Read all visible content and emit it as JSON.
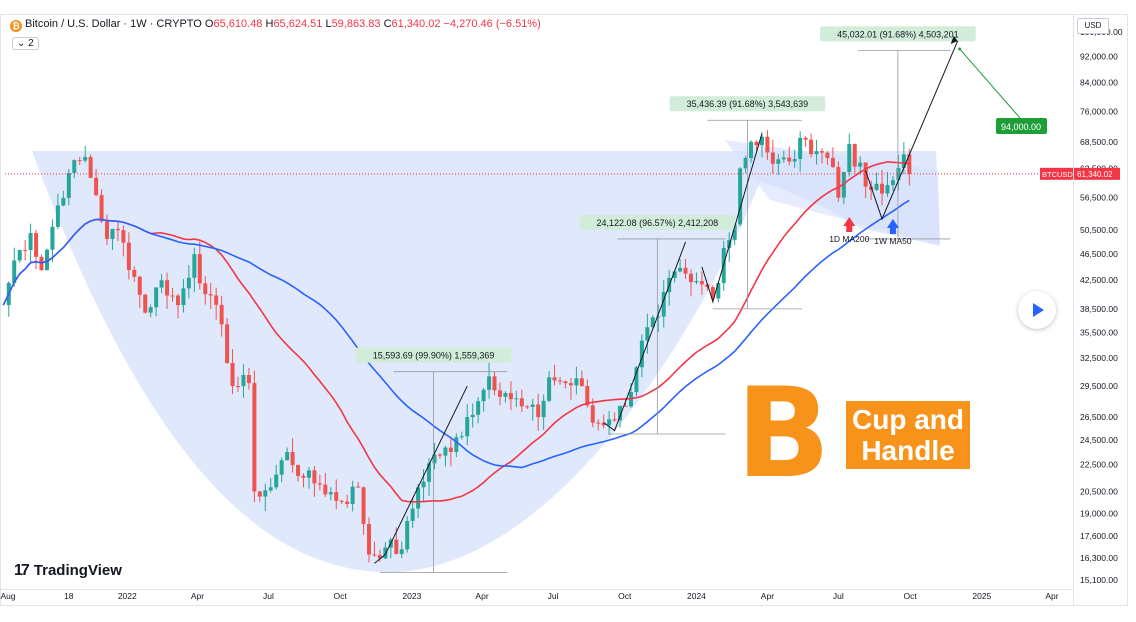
{
  "header": {
    "symbol": "Bitcoin / U.S. Dollar · 1W · CRYPTO",
    "open_label": "O",
    "open": "65,610.48",
    "high_label": "H",
    "high": "65,624.51",
    "low_label": "L",
    "low": "59,863.83",
    "close_label": "C",
    "close": "61,340.02",
    "change": "−4,270.46 (−6.51%)",
    "indicators_count": "2"
  },
  "brand": {
    "name": "TradingView"
  },
  "currency": "USD",
  "price_tag": {
    "symbol": "BTCUSD",
    "value": "61,340.02"
  },
  "annotations": {
    "cup_handle_line1": "Cup and",
    "cup_handle_line2": "Handle",
    "btc_symbol": "B",
    "target_label": "94,000.00",
    "ma200_label": "1D MA200",
    "ma50_label": "1W MA50",
    "measure1": "15,593.69 (99.90%) 1,559,369",
    "measure2": "24,122.08 (96.57%) 2,412,208",
    "measure3": "35,436.39 (91.68%) 3,543,639",
    "measure4": "45,032.01 (91.68%) 4,503,201"
  },
  "colors": {
    "up": "#26a69a",
    "down": "#ef5350",
    "ma_red": "#f23645",
    "ma_blue": "#2962ff",
    "cup_fill": "#d6e0fb",
    "accent": "#f7931a",
    "target": "#1e9e38",
    "label_bg": "#d1ecd8"
  },
  "chart_data": {
    "type": "candlestick",
    "title": "Bitcoin / U.S. Dollar · 1W · CRYPTO",
    "y_scale": "log",
    "ylim": [
      14800,
      105000
    ],
    "y_ticks": [
      "100,000.00",
      "92,000.00",
      "84,000.00",
      "76,000.00",
      "68,500.00",
      "62,500.00",
      "56,500.00",
      "50,500.00",
      "46,500.00",
      "42,500.00",
      "38,500.00",
      "35,500.00",
      "32,500.00",
      "29,500.00",
      "26,500.00",
      "24,500.00",
      "22,500.00",
      "20,500.00",
      "19,000.00",
      "17,600.00",
      "16,300.00",
      "15,100.00"
    ],
    "x_ticks": [
      "Aug",
      "18",
      "2022",
      "Apr",
      "Jul",
      "Oct",
      "2023",
      "Apr",
      "Jul",
      "Oct",
      "2024",
      "Apr",
      "Jul",
      "Oct",
      "2025",
      "Apr"
    ],
    "x_tick_dates": [
      "2021-08-01",
      "2021-10-18",
      "2022-01-01",
      "2022-04-01",
      "2022-07-01",
      "2022-10-01",
      "2023-01-01",
      "2023-04-01",
      "2023-07-01",
      "2023-10-01",
      "2024-01-01",
      "2024-04-01",
      "2024-07-01",
      "2024-10-01",
      "2025-01-01",
      "2025-04-01"
    ],
    "weekly_closes_anchor": [
      [
        "2021-07-26",
        39000
      ],
      [
        "2021-08-09",
        45500
      ],
      [
        "2021-08-30",
        50000
      ],
      [
        "2021-09-13",
        44000
      ],
      [
        "2021-10-04",
        55000
      ],
      [
        "2021-10-18",
        61500
      ],
      [
        "2021-11-08",
        65000
      ],
      [
        "2021-11-22",
        57000
      ],
      [
        "2021-12-06",
        49000
      ],
      [
        "2021-12-20",
        50500
      ],
      [
        "2022-01-10",
        43000
      ],
      [
        "2022-01-24",
        38000
      ],
      [
        "2022-02-14",
        42500
      ],
      [
        "2022-03-07",
        39000
      ],
      [
        "2022-03-28",
        46500
      ],
      [
        "2022-04-11",
        40500
      ],
      [
        "2022-05-02",
        36500
      ],
      [
        "2022-05-16",
        29500
      ],
      [
        "2022-06-06",
        29800
      ],
      [
        "2022-06-13",
        20500
      ],
      [
        "2022-07-04",
        20800
      ],
      [
        "2022-07-25",
        23500
      ],
      [
        "2022-08-15",
        21500
      ],
      [
        "2022-09-05",
        21000
      ],
      [
        "2022-10-03",
        19800
      ],
      [
        "2022-10-24",
        20800
      ],
      [
        "2022-11-07",
        16500
      ],
      [
        "2022-11-28",
        16900
      ],
      [
        "2022-12-19",
        16800
      ],
      [
        "2023-01-09",
        20800
      ],
      [
        "2023-01-30",
        23300
      ],
      [
        "2023-02-20",
        23500
      ],
      [
        "2023-03-13",
        26500
      ],
      [
        "2023-03-27",
        28000
      ],
      [
        "2023-04-10",
        30500
      ],
      [
        "2023-05-01",
        28800
      ],
      [
        "2023-05-22",
        27500
      ],
      [
        "2023-06-12",
        26500
      ],
      [
        "2023-06-26",
        30400
      ],
      [
        "2023-07-17",
        29800
      ],
      [
        "2023-08-07",
        29500
      ],
      [
        "2023-08-21",
        26000
      ],
      [
        "2023-09-11",
        26300
      ],
      [
        "2023-10-02",
        27500
      ],
      [
        "2023-10-23",
        34500
      ],
      [
        "2023-11-13",
        37500
      ],
      [
        "2023-12-04",
        43800
      ],
      [
        "2023-12-25",
        42200
      ],
      [
        "2024-01-15",
        41500
      ],
      [
        "2024-01-22",
        39900
      ],
      [
        "2024-02-05",
        47500
      ],
      [
        "2024-02-19",
        51500
      ],
      [
        "2024-02-26",
        62500
      ],
      [
        "2024-03-11",
        68500
      ],
      [
        "2024-03-25",
        69700
      ],
      [
        "2024-04-08",
        63500
      ],
      [
        "2024-04-29",
        64000
      ],
      [
        "2024-05-20",
        69000
      ],
      [
        "2024-06-10",
        66000
      ],
      [
        "2024-06-24",
        62800
      ],
      [
        "2024-07-01",
        56500
      ],
      [
        "2024-07-15",
        68000
      ],
      [
        "2024-08-05",
        58700
      ],
      [
        "2024-08-26",
        57300
      ],
      [
        "2024-09-09",
        60000
      ],
      [
        "2024-09-23",
        65600
      ],
      [
        "2024-09-30",
        61340
      ]
    ],
    "ma_red_name": "1D MA200",
    "ma_blue_name": "1W MA50",
    "last_close": 61340.02,
    "target": 94000,
    "measurements": [
      {
        "label": "15,593.69 (99.90%) 1,559,369",
        "from_date": "2022-11-21",
        "to_date": "2023-03-13",
        "from": 15500,
        "to": 31000
      },
      {
        "label": "24,122.08 (96.57%) 2,412,208",
        "from_date": "2023-09-11",
        "to_date": "2023-12-18",
        "from": 25000,
        "to": 49000
      },
      {
        "label": "35,436.39 (91.68%) 3,543,639",
        "from_date": "2024-01-22",
        "to_date": "2024-03-25",
        "from": 38500,
        "to": 73800
      },
      {
        "label": "45,032.01 (91.68%) 4,503,201",
        "from_date": "2024-08-05",
        "to_date": "2024-10-01",
        "from": 49000,
        "to": 93900
      }
    ]
  }
}
